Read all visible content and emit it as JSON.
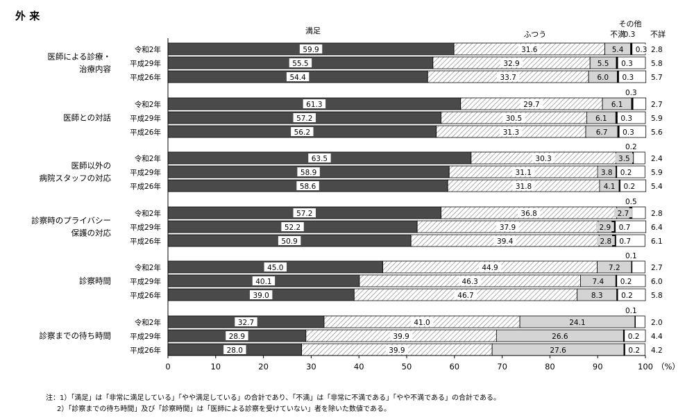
{
  "page_title": "外 来",
  "notes": [
    "注：1）「満足」は「非常に満足している」「やや満足している」の合計であり、「不満」は「非常に不満である」「やや不満である」の合計である。",
    "2）「診察までの待ち時間」及び「診察時間」は「医師による診察を受けていない」者を除いた数値である。"
  ],
  "colors": {
    "satisfied": "#4a4a4a",
    "neutral_hatch": "#8a8a8a",
    "dissatisfied": "#d4d4d4",
    "other": "#000000",
    "unknown": "#ffffff"
  },
  "chart_data": {
    "type": "bar",
    "orientation": "horizontal",
    "stacked": true,
    "xlim": [
      0,
      100
    ],
    "x_ticks": [
      "0",
      "10",
      "20",
      "30",
      "40",
      "50",
      "60",
      "70",
      "80",
      "90",
      "100"
    ],
    "x_unit": "（%）",
    "series": [
      {
        "name": "満足",
        "label": "満足"
      },
      {
        "name": "ふつう",
        "label": "ふつう"
      },
      {
        "name": "不満",
        "label": "不満"
      },
      {
        "name": "その他",
        "label": "その他"
      },
      {
        "name": "不詳",
        "label": "不詳"
      }
    ],
    "groups": [
      {
        "label_lines": [
          "医師による診療・",
          "治療内容"
        ],
        "bars": [
          {
            "year": "令和2年",
            "values": [
              59.9,
              31.6,
              5.4,
              0.3,
              2.8
            ],
            "labels": [
              "59.9",
              "31.6",
              "5.4",
              "0.3",
              "2.8"
            ],
            "other_above": false
          },
          {
            "year": "平成29年",
            "values": [
              55.5,
              32.9,
              5.5,
              0.3,
              5.8
            ],
            "labels": [
              "55.5",
              "32.9",
              "5.5",
              "0.3",
              "5.8"
            ],
            "other_above": false
          },
          {
            "year": "平成26年",
            "values": [
              54.4,
              33.7,
              6.0,
              0.3,
              5.7
            ],
            "labels": [
              "54.4",
              "33.7",
              "6.0",
              "0.3",
              "5.7"
            ],
            "other_above": false
          }
        ]
      },
      {
        "label_lines": [
          "医師との対話"
        ],
        "bars": [
          {
            "year": "令和2年",
            "values": [
              61.3,
              29.7,
              6.1,
              0.3,
              2.7
            ],
            "labels": [
              "61.3",
              "29.7",
              "6.1",
              "0.3",
              "2.7"
            ],
            "other_above": true
          },
          {
            "year": "平成29年",
            "values": [
              57.2,
              30.5,
              6.1,
              0.3,
              5.9
            ],
            "labels": [
              "57.2",
              "30.5",
              "6.1",
              "0.3",
              "5.9"
            ],
            "other_above": false
          },
          {
            "year": "平成26年",
            "values": [
              56.2,
              31.3,
              6.7,
              0.3,
              5.6
            ],
            "labels": [
              "56.2",
              "31.3",
              "6.7",
              "0.3",
              "5.6"
            ],
            "other_above": false
          }
        ]
      },
      {
        "label_lines": [
          "医師以外の",
          "病院スタッフの対応"
        ],
        "bars": [
          {
            "year": "令和2年",
            "values": [
              63.5,
              30.3,
              3.5,
              0.2,
              2.4
            ],
            "labels": [
              "63.5",
              "30.3",
              "3.5",
              "0.2",
              "2.4"
            ],
            "other_above": true
          },
          {
            "year": "平成29年",
            "values": [
              58.9,
              31.1,
              3.8,
              0.2,
              5.9
            ],
            "labels": [
              "58.9",
              "31.1",
              "3.8",
              "0.2",
              "5.9"
            ],
            "other_above": false
          },
          {
            "year": "平成26年",
            "values": [
              58.6,
              31.8,
              4.1,
              0.2,
              5.4
            ],
            "labels": [
              "58.6",
              "31.8",
              "4.1",
              "0.2",
              "5.4"
            ],
            "other_above": false
          }
        ]
      },
      {
        "label_lines": [
          "診察時のプライバシー",
          "保護の対応"
        ],
        "bars": [
          {
            "year": "令和2年",
            "values": [
              57.2,
              36.8,
              2.7,
              0.5,
              2.8
            ],
            "labels": [
              "57.2",
              "36.8",
              "2.7",
              "0.5",
              "2.8"
            ],
            "other_above": true
          },
          {
            "year": "平成29年",
            "values": [
              52.2,
              37.9,
              2.9,
              0.7,
              6.4
            ],
            "labels": [
              "52.2",
              "37.9",
              "2.9",
              "0.7",
              "6.4"
            ],
            "other_above": false
          },
          {
            "year": "平成26年",
            "values": [
              50.9,
              39.4,
              2.8,
              0.7,
              6.1
            ],
            "labels": [
              "50.9",
              "39.4",
              "2.8",
              "0.7",
              "6.1"
            ],
            "other_above": false
          }
        ]
      },
      {
        "label_lines": [
          "診察時間"
        ],
        "bars": [
          {
            "year": "令和2年",
            "values": [
              45.0,
              44.9,
              7.2,
              0.1,
              2.7
            ],
            "labels": [
              "45.0",
              "44.9",
              "7.2",
              "0.1",
              "2.7"
            ],
            "other_above": true
          },
          {
            "year": "平成29年",
            "values": [
              40.1,
              46.3,
              7.4,
              0.2,
              6.0
            ],
            "labels": [
              "40.1",
              "46.3",
              "7.4",
              "0.2",
              "6.0"
            ],
            "other_above": false
          },
          {
            "year": "平成26年",
            "values": [
              39.0,
              46.7,
              8.3,
              0.2,
              5.8
            ],
            "labels": [
              "39.0",
              "46.7",
              "8.3",
              "0.2",
              "5.8"
            ],
            "other_above": false
          }
        ]
      },
      {
        "label_lines": [
          "診察までの待ち時間"
        ],
        "bars": [
          {
            "year": "令和2年",
            "values": [
              32.7,
              41.0,
              24.1,
              0.1,
              2.0
            ],
            "labels": [
              "32.7",
              "41.0",
              "24.1",
              "0.1",
              "2.0"
            ],
            "other_above": true
          },
          {
            "year": "平成29年",
            "values": [
              28.9,
              39.9,
              26.6,
              0.2,
              4.4
            ],
            "labels": [
              "28.9",
              "39.9",
              "26.6",
              "0.2",
              "4.4"
            ],
            "other_above": false
          },
          {
            "year": "平成26年",
            "values": [
              28.0,
              39.9,
              27.6,
              0.2,
              4.2
            ],
            "labels": [
              "28.0",
              "39.9",
              "27.6",
              "0.2",
              "4.2"
            ],
            "other_above": false
          }
        ]
      }
    ]
  }
}
